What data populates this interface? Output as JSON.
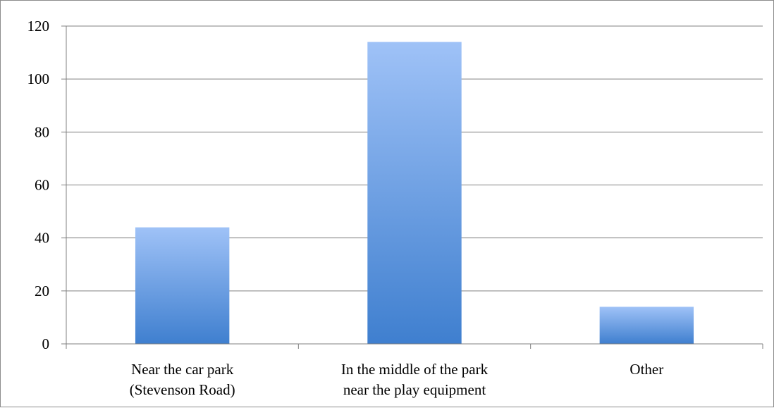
{
  "chart_data": {
    "type": "bar",
    "title": "",
    "xlabel": "",
    "ylabel": "",
    "categories": [
      [
        "Near the car park",
        "(Stevenson Road)"
      ],
      [
        "In the middle of the park",
        "near the play equipment"
      ],
      [
        "Other"
      ]
    ],
    "values": [
      44,
      114,
      14
    ],
    "ylim": [
      0,
      120
    ],
    "yticks": [
      "0",
      "20",
      "40",
      "60",
      "80",
      "100",
      "120"
    ],
    "grid": true,
    "legend": "none",
    "colors": {
      "bar_top": "#9fc2f7",
      "bar_bottom": "#3f7fcf",
      "grid": "#808080",
      "axis": "#808080"
    }
  }
}
